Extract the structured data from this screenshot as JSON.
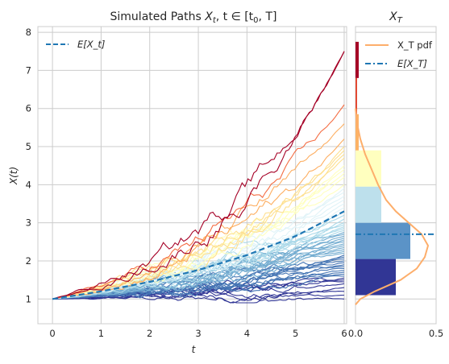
{
  "chart_data": [
    {
      "type": "line",
      "title": "Simulated Paths X_t, t ∈ [t_0, T]",
      "title_parts": {
        "prefix": "Simulated Paths ",
        "var": "X",
        "sub": "t",
        "mid": ", t ∈ [t",
        "sub0": "0",
        "end": ", T]"
      },
      "xlabel": "t",
      "ylabel": "X(t)",
      "xlim": [
        -0.3,
        6.05
      ],
      "ylim": [
        0.35,
        8.15
      ],
      "xticks": [
        "0",
        "1",
        "2",
        "3",
        "4",
        "5",
        "6"
      ],
      "yticks": [
        "1",
        "2",
        "3",
        "4",
        "5",
        "6",
        "7",
        "8"
      ],
      "grid": true,
      "legend": {
        "position": "top-left",
        "entries": [
          {
            "label": "E[X_t]",
            "style": "dashed",
            "color": "#1f77b4"
          }
        ]
      },
      "expected_curve": {
        "x": [
          0,
          1,
          2,
          3,
          4,
          5,
          6
        ],
        "y": [
          1.0,
          1.2,
          1.45,
          1.76,
          2.15,
          2.65,
          3.3
        ]
      },
      "n_paths": 60,
      "path_final_values": [
        7.5,
        7.5,
        6.1,
        5.6,
        5.2,
        5.0,
        4.9,
        4.8,
        4.7,
        4.5,
        4.4,
        4.3,
        4.2,
        4.0,
        3.9,
        3.8,
        3.7,
        3.6,
        3.5,
        3.4,
        3.3,
        3.2,
        3.1,
        3.0,
        2.95,
        2.9,
        2.85,
        2.8,
        2.75,
        2.7,
        2.65,
        2.6,
        2.55,
        2.5,
        2.45,
        2.4,
        2.35,
        2.3,
        2.25,
        2.2,
        2.15,
        2.1,
        2.05,
        2.0,
        1.95,
        1.9,
        1.85,
        1.8,
        1.75,
        1.7,
        1.65,
        1.6,
        1.55,
        1.5,
        1.45,
        1.4,
        1.3,
        1.2,
        1.1,
        1.0
      ]
    },
    {
      "type": "bar",
      "orientation": "horizontal",
      "title": "X_T",
      "xlim": [
        0,
        0.5
      ],
      "xticks": [
        "0.0",
        "0.5"
      ],
      "bin_edges": [
        1.1,
        2.05,
        3.0,
        3.95,
        4.9,
        5.85,
        6.8,
        7.75
      ],
      "values": [
        0.25,
        0.34,
        0.16,
        0.16,
        0.02,
        0.01,
        0.02
      ],
      "bar_colors": [
        "#313695",
        "#5b93c7",
        "#bde0ec",
        "#ffffbf",
        "#fdb366",
        "#e34a33",
        "#a50026"
      ],
      "legend": {
        "position": "top-right",
        "entries": [
          {
            "label": "X_T pdf",
            "style": "solid",
            "color": "#fdae6b"
          },
          {
            "label": "E[X_T]",
            "style": "dashdot",
            "color": "#1f77b4"
          }
        ]
      },
      "pdf_curve": {
        "y": [
          0.85,
          1.0,
          1.2,
          1.5,
          1.8,
          2.1,
          2.4,
          2.7,
          3.0,
          3.3,
          3.6,
          4.0,
          4.4,
          4.8,
          5.2,
          5.6,
          6.0
        ],
        "density": [
          0.0,
          0.03,
          0.12,
          0.28,
          0.38,
          0.43,
          0.45,
          0.41,
          0.33,
          0.25,
          0.19,
          0.14,
          0.1,
          0.06,
          0.03,
          0.01,
          0.0
        ]
      },
      "expected_value": 2.7
    }
  ]
}
